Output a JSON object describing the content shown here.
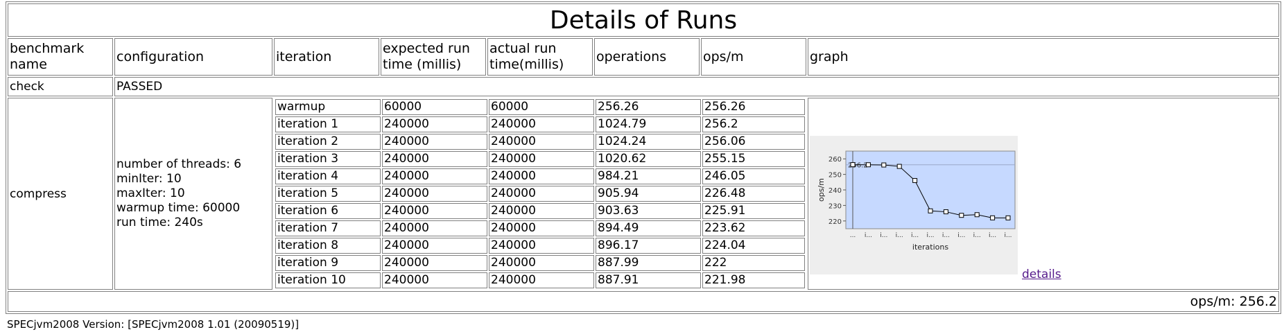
{
  "title": "Details of Runs",
  "headers": [
    "benchmark name",
    "configuration",
    "iteration",
    "expected run time (millis)",
    "actual run time(millis)",
    "operations",
    "ops/m",
    "graph"
  ],
  "check": {
    "name": "check",
    "status": "PASSED"
  },
  "benchmark": {
    "name": "compress",
    "config": [
      "number of threads: 6",
      "minIter: 10",
      "maxIter: 10",
      "warmup time: 60000",
      "run time: 240s"
    ],
    "iterations": [
      {
        "iteration": "warmup",
        "expected": "60000",
        "actual": "60000",
        "operations": "256.26",
        "opsm": "256.26"
      },
      {
        "iteration": "iteration 1",
        "expected": "240000",
        "actual": "240000",
        "operations": "1024.79",
        "opsm": "256.2"
      },
      {
        "iteration": "iteration 2",
        "expected": "240000",
        "actual": "240000",
        "operations": "1024.24",
        "opsm": "256.06"
      },
      {
        "iteration": "iteration 3",
        "expected": "240000",
        "actual": "240000",
        "operations": "1020.62",
        "opsm": "255.15"
      },
      {
        "iteration": "iteration 4",
        "expected": "240000",
        "actual": "240000",
        "operations": "984.21",
        "opsm": "246.05"
      },
      {
        "iteration": "iteration 5",
        "expected": "240000",
        "actual": "240000",
        "operations": "905.94",
        "opsm": "226.48"
      },
      {
        "iteration": "iteration 6",
        "expected": "240000",
        "actual": "240000",
        "operations": "903.63",
        "opsm": "225.91"
      },
      {
        "iteration": "iteration 7",
        "expected": "240000",
        "actual": "240000",
        "operations": "894.49",
        "opsm": "223.62"
      },
      {
        "iteration": "iteration 8",
        "expected": "240000",
        "actual": "240000",
        "operations": "896.17",
        "opsm": "224.04"
      },
      {
        "iteration": "iteration 9",
        "expected": "240000",
        "actual": "240000",
        "operations": "887.99",
        "opsm": "222"
      },
      {
        "iteration": "iteration 10",
        "expected": "240000",
        "actual": "240000",
        "operations": "887.91",
        "opsm": "221.98"
      }
    ],
    "details_link": "details"
  },
  "footer": {
    "summary": "ops/m: 256.2"
  },
  "version_line": "SPECjvm2008 Version: [SPECjvm2008 1.01 (20090519)]",
  "chart_data": {
    "type": "line",
    "xlabel": "iterations",
    "ylabel": "ops/m",
    "x_tick_labels": [
      "...",
      "i...",
      "i...",
      "i...",
      "i...",
      "i...",
      "i...",
      "i...",
      "i...",
      "i...",
      "i..."
    ],
    "values": [
      256.26,
      256.2,
      256.06,
      255.15,
      246.05,
      226.48,
      225.91,
      223.62,
      224.04,
      222,
      221.98
    ],
    "yticks": [
      220,
      230,
      240,
      250,
      260
    ],
    "ylim": [
      215,
      265
    ],
    "reference_value": 256.2,
    "reference_label": "256.2",
    "colors": {
      "plot_bg": "#c6d9ff",
      "line": "#000000",
      "marker_fill": "#ffffff",
      "grid": "#9aa8c8",
      "panel_bg": "#eeeeee"
    }
  }
}
